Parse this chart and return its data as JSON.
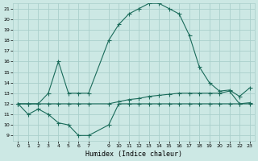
{
  "xlabel": "Humidex (Indice chaleur)",
  "xlim": [
    -0.5,
    23.5
  ],
  "ylim": [
    8.5,
    21.5
  ],
  "xticks": [
    0,
    1,
    2,
    3,
    4,
    5,
    6,
    7,
    9,
    10,
    11,
    12,
    13,
    14,
    15,
    16,
    17,
    18,
    19,
    20,
    21,
    22,
    23
  ],
  "yticks": [
    9,
    10,
    11,
    12,
    13,
    14,
    15,
    16,
    17,
    18,
    19,
    20,
    21
  ],
  "bg_color": "#cce8e4",
  "grid_color": "#aacfcb",
  "line_color": "#1a6b5a",
  "curve1_x": [
    0,
    1,
    2,
    3,
    4,
    5,
    6,
    7,
    9,
    10,
    11,
    12,
    13,
    14,
    15,
    16,
    17,
    18,
    19,
    20,
    21,
    22,
    23
  ],
  "curve1_y": [
    12,
    12,
    12,
    13,
    16,
    13,
    13,
    13,
    18,
    19.5,
    20.5,
    21,
    21.5,
    21.5,
    21,
    20.5,
    18.5,
    15.5,
    14,
    13.2,
    13.3,
    12.7,
    13.5
  ],
  "curve2_x": [
    0,
    1,
    2,
    3,
    4,
    5,
    6,
    7,
    9,
    10,
    11,
    12,
    13,
    14,
    15,
    16,
    17,
    18,
    19,
    20,
    21,
    22,
    23
  ],
  "curve2_y": [
    12,
    11,
    11.5,
    11,
    10.2,
    10,
    9,
    9,
    10,
    12,
    12,
    12,
    12,
    12,
    12,
    12,
    12,
    12,
    12,
    12,
    12,
    12,
    12
  ],
  "curve3_x": [
    0,
    1,
    2,
    3,
    4,
    5,
    6,
    7,
    9,
    10,
    11,
    12,
    13,
    14,
    15,
    16,
    17,
    18,
    19,
    20,
    21,
    22,
    23
  ],
  "curve3_y": [
    12,
    12,
    12,
    12,
    12,
    12,
    12,
    12,
    12,
    12.2,
    12.4,
    12.5,
    12.7,
    12.8,
    12.9,
    13,
    13,
    13,
    13,
    13,
    13.2,
    12,
    12.1
  ]
}
